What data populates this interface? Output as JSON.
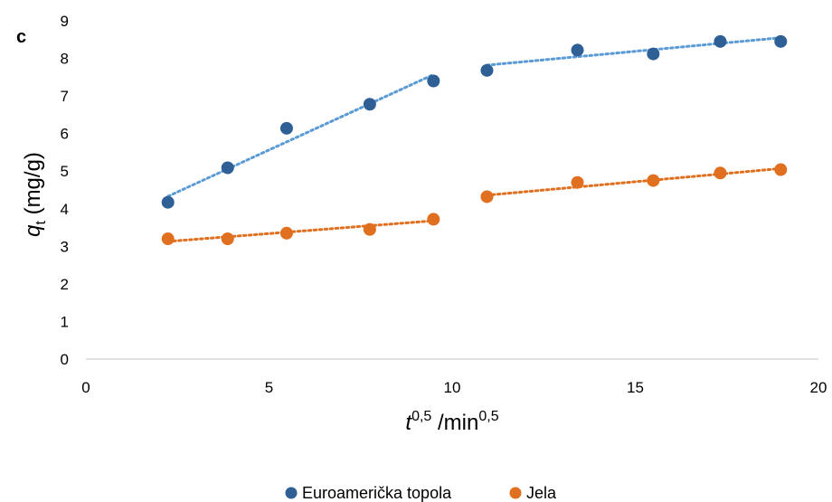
{
  "chart_data": {
    "type": "scatter",
    "panel_label": "c",
    "xlabel": {
      "base": "t",
      "base_sup": "0,5",
      "unit_prefix": " /min",
      "unit_sup": "0,5"
    },
    "ylabel": {
      "prefix": "q",
      "sub": "t",
      "unit": " (mg/g)"
    },
    "xlim": [
      0,
      20
    ],
    "ylim": [
      0,
      9
    ],
    "x_ticks": [
      0,
      5,
      10,
      15,
      20
    ],
    "y_ticks": [
      0,
      1,
      2,
      3,
      4,
      5,
      6,
      7,
      8,
      9
    ],
    "grid": false,
    "legend_position": "bottom-center",
    "series": [
      {
        "name": "Euroamerička topola",
        "color": "#2e5f95",
        "trend_color": "#5b9bd5",
        "x": [
          2.24,
          3.87,
          5.48,
          7.75,
          9.49,
          10.95,
          13.42,
          15.49,
          17.32,
          18.97
        ],
        "y": [
          4.17,
          5.09,
          6.14,
          6.78,
          7.4,
          7.68,
          8.22,
          8.12,
          8.45,
          8.45
        ],
        "trendlines": [
          {
            "x": [
              2.24,
              9.49
            ],
            "y": [
              4.33,
              7.57
            ]
          },
          {
            "x": [
              10.95,
              18.97
            ],
            "y": [
              7.82,
              8.55
            ]
          }
        ]
      },
      {
        "name": "Jela",
        "color": "#e07020",
        "trend_color": "#e07020",
        "x": [
          2.24,
          3.87,
          5.48,
          7.75,
          9.49,
          10.95,
          13.42,
          15.49,
          17.32,
          18.97
        ],
        "y": [
          3.2,
          3.2,
          3.35,
          3.45,
          3.72,
          4.32,
          4.7,
          4.75,
          4.95,
          5.04
        ],
        "trendlines": [
          {
            "x": [
              2.24,
              9.49
            ],
            "y": [
              3.13,
              3.68
            ]
          },
          {
            "x": [
              10.95,
              18.97
            ],
            "y": [
              4.36,
              5.07
            ]
          }
        ]
      }
    ]
  }
}
